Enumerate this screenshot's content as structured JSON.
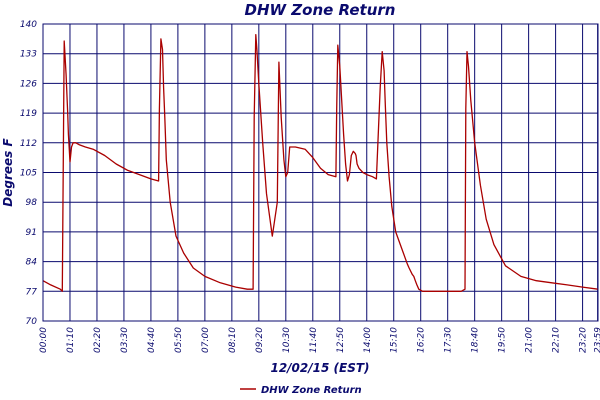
{
  "chart_data": {
    "type": "line",
    "title": "DHW Zone Return",
    "xlabel": "12/02/15 (EST)",
    "ylabel": "Degrees F",
    "ylim": [
      70,
      140
    ],
    "yticks": [
      70,
      77,
      84,
      91,
      98,
      105,
      112,
      119,
      126,
      133,
      140
    ],
    "xlim_minutes": [
      0,
      1440
    ],
    "xtick_labels": [
      "00:00",
      "01:10",
      "02:20",
      "03:30",
      "04:40",
      "05:50",
      "07:00",
      "08:10",
      "09:20",
      "10:30",
      "11:40",
      "12:50",
      "14:00",
      "15:10",
      "16:20",
      "17:30",
      "18:40",
      "19:50",
      "21:00",
      "22:10",
      "23:20",
      "23:59"
    ],
    "grid": true,
    "legend": "bottom",
    "colors": {
      "series": "#aa0000",
      "grid": "#0a0a6e",
      "text": "#0a0a6e"
    },
    "series": [
      {
        "name": "DHW Zone Return",
        "x": [
          0,
          20,
          45,
          50,
          55,
          60,
          64,
          66,
          70,
          74,
          78,
          85,
          95,
          110,
          130,
          160,
          190,
          220,
          250,
          280,
          300,
          302,
          306,
          310,
          313,
          316,
          320,
          330,
          345,
          365,
          390,
          420,
          460,
          500,
          530,
          545,
          548,
          552,
          555,
          560,
          570,
          580,
          595,
          608,
          612,
          618,
          625,
          630,
          635,
          640,
          655,
          680,
          700,
          720,
          740,
          760,
          762,
          765,
          770,
          775,
          780,
          785,
          790,
          795,
          800,
          805,
          810,
          812,
          815,
          820,
          830,
          840,
          855,
          865,
          875,
          880,
          885,
          888,
          892,
          898,
          905,
          915,
          935,
          945,
          950,
          958,
          962,
          966,
          970,
          975,
          985,
          1000,
          1020,
          1040,
          1060,
          1085,
          1095,
          1097,
          1100,
          1104,
          1110,
          1120,
          1135,
          1150,
          1170,
          1200,
          1240,
          1280,
          1320,
          1360,
          1400,
          1440
        ],
        "y": [
          79.5,
          78.5,
          77.5,
          77,
          136,
          128,
          119,
          114,
          107.5,
          111,
          112,
          112,
          111.5,
          111,
          110.5,
          109,
          107,
          105.5,
          104.5,
          103.5,
          103,
          120,
          136.5,
          134,
          125,
          118,
          108,
          98,
          90,
          86,
          82.5,
          80.5,
          79,
          78,
          77.5,
          77.5,
          118,
          137.5,
          134,
          126,
          112,
          100,
          90,
          98,
          131,
          118,
          108,
          104,
          105,
          111,
          111,
          110.5,
          108.5,
          106,
          104.5,
          104,
          120,
          135,
          130,
          122,
          114,
          107,
          103,
          104.5,
          109,
          110,
          109.5,
          109,
          107,
          106,
          105,
          104.5,
          104,
          103.5,
          125,
          133.5,
          129,
          121,
          112,
          104,
          97,
          91,
          86,
          83.5,
          82.5,
          81,
          80.5,
          79.5,
          78.5,
          77.5,
          77,
          77,
          77,
          77,
          77,
          77,
          77.5,
          120,
          133.5,
          130,
          122,
          112,
          102,
          94,
          88,
          83,
          80.5,
          79.5,
          79,
          78.5,
          78,
          77.5
        ]
      }
    ]
  }
}
